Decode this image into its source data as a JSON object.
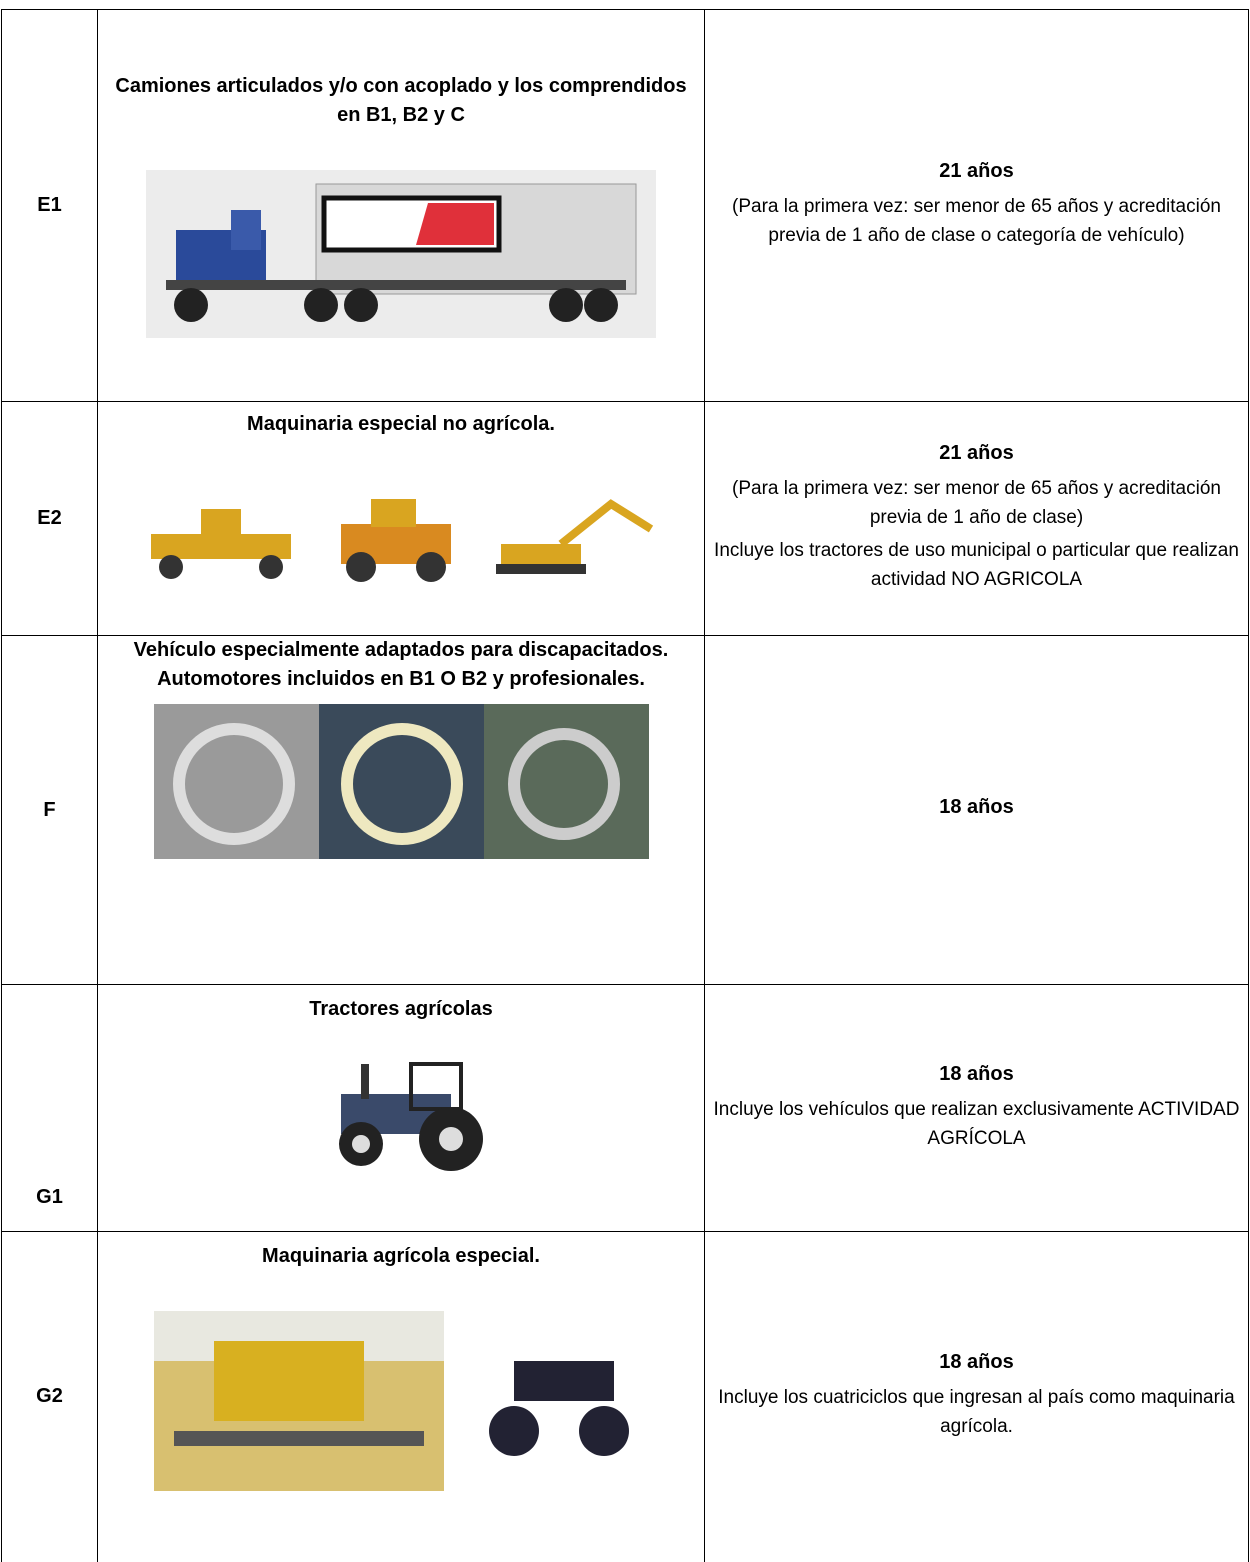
{
  "table": {
    "rows": [
      {
        "class": "E1",
        "description": "Camiones articulados y/o con acoplado y los comprendidos en B1, B2 y C",
        "age": "21 años",
        "notes": [
          "(Para la primera vez: ser menor de 65 años y acreditación previa de 1 año de clase o categoría de vehículo)"
        ]
      },
      {
        "class": "E2",
        "description": "Maquinaria especial no agrícola.",
        "age": "21 años",
        "notes": [
          "(Para la primera vez: ser menor de 65 años y acreditación previa de 1 año de clase)",
          "Incluye los tractores de uso municipal o particular que realizan actividad NO AGRICOLA"
        ]
      },
      {
        "class": "F",
        "description": "Vehículo especialmente adaptados para discapacitados. Automotores incluidos en B1 O B2 y profesionales.",
        "age": "18 años",
        "notes": []
      },
      {
        "class": "G1",
        "description": "Tractores agrícolas",
        "age": "18 años",
        "notes": [
          "Incluye los vehículos que realizan exclusivamente ACTIVIDAD AGRÍCOLA"
        ]
      },
      {
        "class": "G2",
        "description": "Maquinaria agrícola especial.",
        "age": "18 años",
        "notes": [
          "Incluye los cuatriciclos que ingresan al país como maquinaria agrícola."
        ]
      }
    ]
  }
}
